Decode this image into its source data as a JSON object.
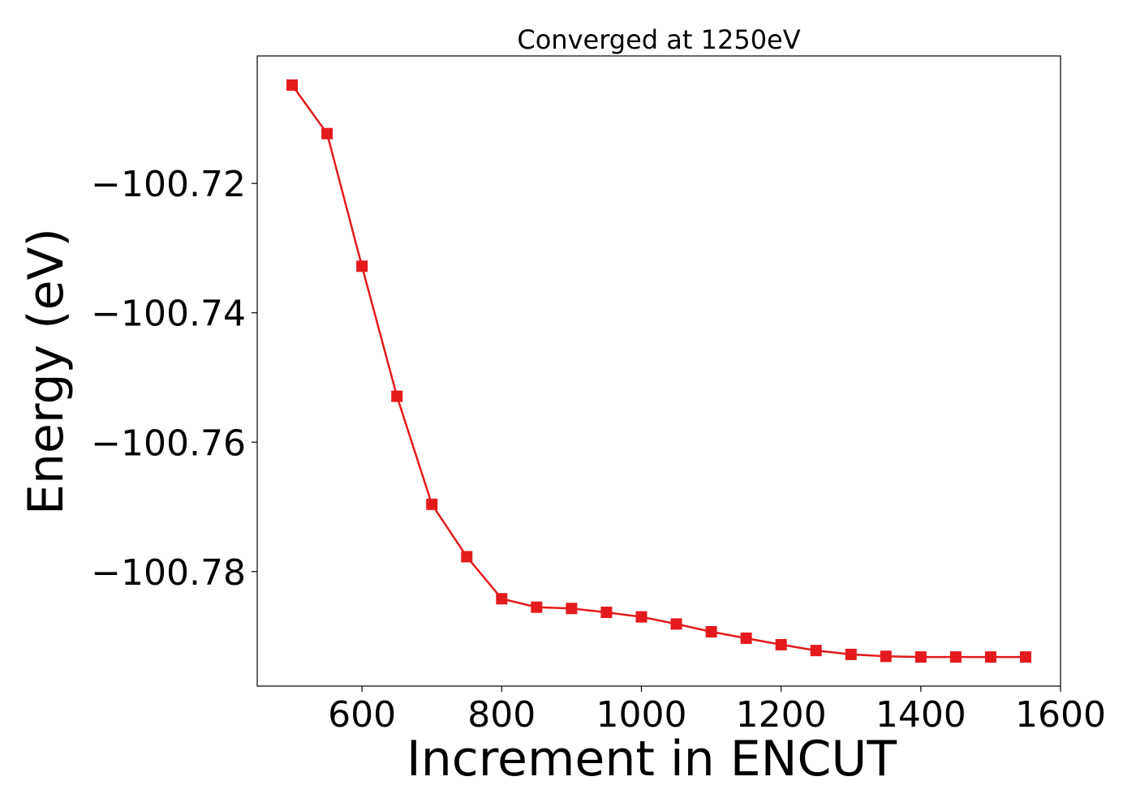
{
  "chart_data": {
    "type": "line",
    "title": "Converged at 1250eV",
    "xlabel": "Increment in ENCUT",
    "ylabel": "Energy (eV)",
    "xlim": [
      450,
      1600
    ],
    "ylim": [
      -100.7977,
      -100.7003
    ],
    "xticks": [
      600,
      800,
      1000,
      1200,
      1400,
      1600
    ],
    "xtick_labels": [
      "600",
      "800",
      "1000",
      "1200",
      "1400",
      "1600"
    ],
    "yticks": [
      -100.72,
      -100.74,
      -100.76,
      -100.78
    ],
    "ytick_labels": [
      "−100.72",
      "−100.74",
      "−100.76",
      "−100.78"
    ],
    "grid": false,
    "series": [
      {
        "color": "#e41a1c",
        "marker": "square",
        "x": [
          500,
          550,
          600,
          650,
          700,
          750,
          800,
          850,
          900,
          950,
          1000,
          1050,
          1100,
          1150,
          1200,
          1250,
          1300,
          1350,
          1400,
          1450,
          1500,
          1550
        ],
        "values": [
          -100.7048,
          -100.7123,
          -100.7328,
          -100.7529,
          -100.7696,
          -100.7777,
          -100.7842,
          -100.7855,
          -100.7857,
          -100.7863,
          -100.787,
          -100.7881,
          -100.7893,
          -100.7903,
          -100.7913,
          -100.7922,
          -100.7928,
          -100.7931,
          -100.7932,
          -100.7932,
          -100.7932,
          -100.7932
        ]
      }
    ]
  }
}
